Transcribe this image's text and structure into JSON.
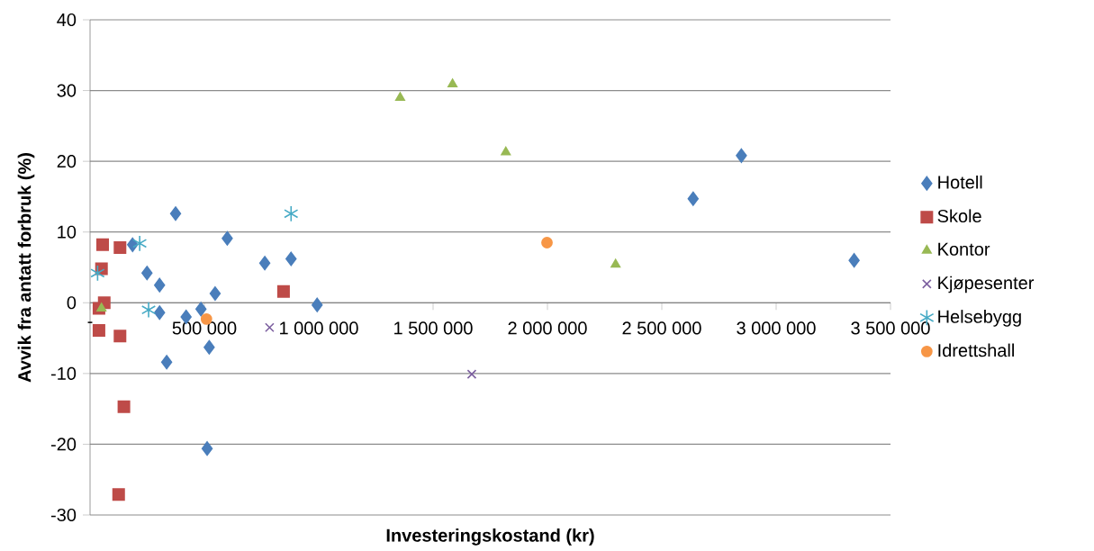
{
  "chart_data": {
    "type": "scatter",
    "xlabel": "Investeringskostand (kr)",
    "ylabel": "Avvik fra antatt forbruk (%)",
    "xlim": [
      0,
      3500000
    ],
    "ylim": [
      -30,
      40
    ],
    "xticks": [
      {
        "value": 0,
        "label": "-"
      },
      {
        "value": 500000,
        "label": "500 000"
      },
      {
        "value": 1000000,
        "label": "1 000 000"
      },
      {
        "value": 1500000,
        "label": "1 500 000"
      },
      {
        "value": 2000000,
        "label": "2 000 000"
      },
      {
        "value": 2500000,
        "label": "2 500 000"
      },
      {
        "value": 3000000,
        "label": "3 000 000"
      },
      {
        "value": 3500000,
        "label": "3 500 000"
      }
    ],
    "yticks": [
      -30,
      -20,
      -10,
      0,
      10,
      20,
      30,
      40
    ],
    "grid": "y",
    "legend": "right",
    "series": [
      {
        "name": "Hotell",
        "color": "#4a7ebb",
        "marker": "diamond",
        "x": [
          374000,
          186000,
          600000,
          249000,
          304000,
          764000,
          879000,
          547000,
          304000,
          420000,
          485000,
          993000,
          521000,
          335000,
          512000,
          2637000,
          2848000,
          3341000
        ],
        "values": [
          12.6,
          8.2,
          9.1,
          4.2,
          2.5,
          5.6,
          6.2,
          1.3,
          -1.4,
          -2.0,
          -0.9,
          -0.3,
          -6.3,
          -8.4,
          -20.6,
          14.7,
          20.8,
          6.0
        ]
      },
      {
        "name": "Skole",
        "color": "#be4b48",
        "marker": "square",
        "x": [
          55000,
          131000,
          50000,
          62000,
          39000,
          39000,
          131000,
          148000,
          125000,
          846000
        ],
        "values": [
          8.2,
          7.8,
          4.8,
          0.0,
          -0.8,
          -3.9,
          -4.7,
          -14.7,
          -27.1,
          1.6
        ]
      },
      {
        "name": "Kontor",
        "color": "#98b954",
        "marker": "triangle",
        "x": [
          50000,
          1356000,
          1585000,
          1818000,
          2298000
        ],
        "values": [
          -0.8,
          29.0,
          30.9,
          21.3,
          5.4
        ]
      },
      {
        "name": "Kjøpesenter",
        "color": "#7d60a0",
        "marker": "cross",
        "x": [
          785000,
          1669000
        ],
        "values": [
          -3.5,
          -10.1
        ]
      },
      {
        "name": "Helsebygg",
        "color": "#46aac5",
        "x": [
          33000,
          217000,
          256000,
          879000
        ],
        "values": [
          4.2,
          8.4,
          -1.0,
          12.6
        ]
      },
      {
        "name": "Idrettshall",
        "color": "#f79646",
        "marker": "circle",
        "x": [
          509000,
          1998000
        ],
        "values": [
          -2.3,
          8.5
        ]
      }
    ]
  }
}
